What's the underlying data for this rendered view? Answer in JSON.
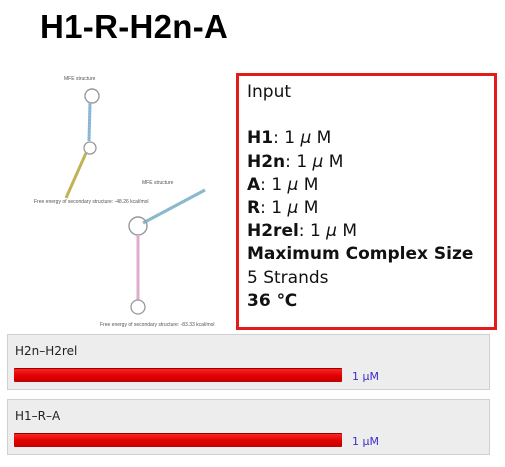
{
  "page": {
    "title": "H1-R-H2n-A"
  },
  "structures": [
    {
      "title": "MFE structure",
      "energy": "Free energy of secondary structure: -48.26 kcal/mol"
    },
    {
      "title": "MFE structure",
      "energy": "Free energy of secondary structure: -83.33 kcal/mol"
    }
  ],
  "input": {
    "heading": "Input",
    "strands": [
      {
        "name": "H1",
        "value": "1 ",
        "unit_mu": "μ",
        "unit_m": " M"
      },
      {
        "name": "H2n",
        "value": "1 ",
        "unit_mu": "μ",
        "unit_m": " M"
      },
      {
        "name": "A",
        "value": "1 ",
        "unit_mu": "μ",
        "unit_m": " M"
      },
      {
        "name": "R",
        "value": "1 ",
        "unit_mu": "μ",
        "unit_m": " M"
      },
      {
        "name": "H2rel",
        "value": "1 ",
        "unit_mu": "μ",
        "unit_m": " M"
      }
    ],
    "max_complex_label": "Maximum Complex Size",
    "max_complex_value": "5 Strands",
    "temperature": "36 ℃",
    "border_color": "#e31b1b"
  },
  "results": [
    {
      "name": "H2n–H2rel",
      "concentration": "1 μM",
      "fraction": 1.0
    },
    {
      "name": "H1–R–A",
      "concentration": "1 μM",
      "fraction": 1.0
    }
  ],
  "colors": {
    "bar": "#e00000",
    "concentration_text": "#3b2cc8",
    "panel_bg": "#ededed"
  }
}
